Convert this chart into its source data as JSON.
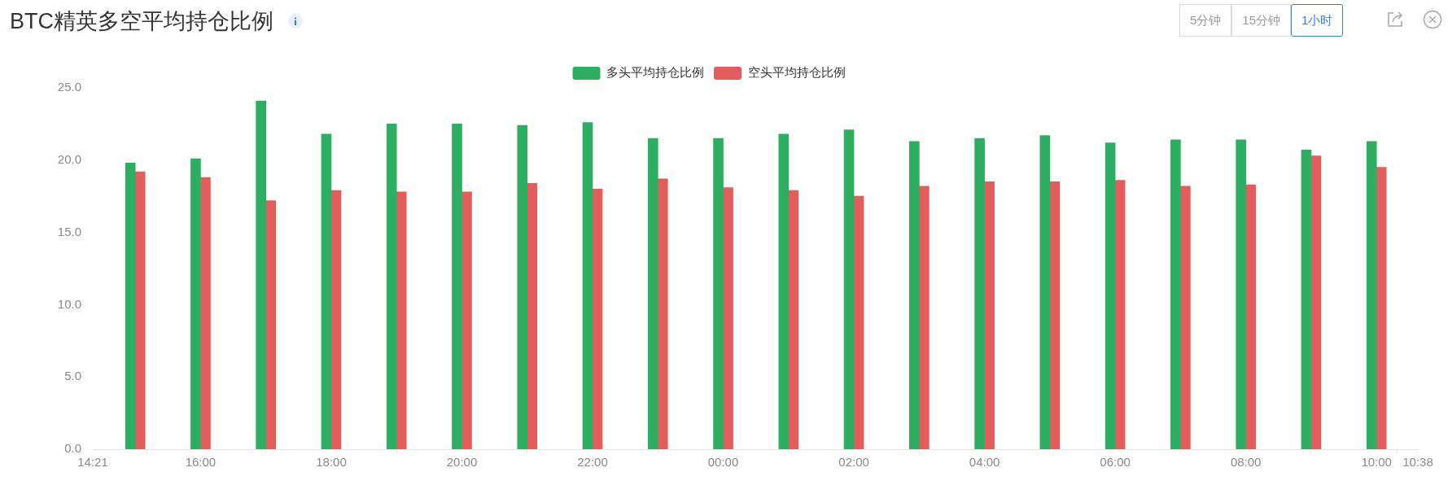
{
  "chart_data": {
    "type": "bar",
    "title": "BTC精英多空平均持仓比例",
    "annotations": [
      "5分钟",
      "15分钟",
      "1小时"
    ],
    "x": [
      "--01-01T15:00",
      "--01-01T16:00",
      "--01-01T17:00",
      "--01-01T18:00",
      "--01-01T19:00",
      "--01-01T20:00",
      "--01-01T21:00",
      "--01-01T22:00",
      "--01-01T23:00",
      "--01-02T00:00",
      "--01-02T01:00",
      "--01-02T02:00",
      "--01-02T03:00",
      "--01-02T04:00",
      "--01-02T05:00",
      "--01-02T06:00",
      "--01-02T07:00",
      "--01-02T08:00",
      "--01-02T09:00",
      "--01-02T10:00"
    ],
    "series": [
      {
        "name": "多头平均持仓比例",
        "color": "#2eae62",
        "values": [
          19.8,
          20.1,
          24.1,
          21.8,
          22.5,
          22.5,
          22.4,
          22.6,
          21.5,
          21.5,
          21.8,
          22.1,
          21.3,
          21.5,
          21.7,
          21.2,
          21.4,
          21.4,
          20.7,
          21.3
        ]
      },
      {
        "name": "空头平均持仓比例",
        "color": "#e35d5d",
        "values": [
          19.2,
          18.8,
          17.2,
          17.9,
          17.8,
          17.8,
          18.4,
          18.0,
          18.7,
          18.1,
          17.9,
          17.5,
          18.2,
          18.5,
          18.5,
          18.6,
          18.2,
          18.3,
          20.3,
          19.5
        ]
      }
    ],
    "xlim": [
      "--01-01T14:21",
      "--01-02T10:38"
    ],
    "xticks": [
      {
        "value": "--01-01T14:21",
        "label": "14:21"
      },
      {
        "value": "--01-01T16:00",
        "label": "16:00"
      },
      {
        "value": "--01-01T18:00",
        "label": "18:00"
      },
      {
        "value": "--01-01T20:00",
        "label": "20:00"
      },
      {
        "value": "--01-01T22:00",
        "label": "22:00"
      },
      {
        "value": "--01-02T00:00",
        "label": "00:00"
      },
      {
        "value": "--01-02T02:00",
        "label": "02:00"
      },
      {
        "value": "--01-02T04:00",
        "label": "04:00"
      },
      {
        "value": "--01-02T06:00",
        "label": "06:00"
      },
      {
        "value": "--01-02T08:00",
        "label": "08:00"
      },
      {
        "value": "--01-02T10:00",
        "label": "10:00"
      },
      {
        "value": "--01-02T10:38",
        "label": "10:38"
      }
    ],
    "ylim": [
      0,
      25
    ],
    "yticks": [
      {
        "value": 0,
        "label": "0.0"
      },
      {
        "value": 5,
        "label": "5.0"
      },
      {
        "value": 10,
        "label": "10.0"
      },
      {
        "value": 15,
        "label": "15.0"
      },
      {
        "value": 20,
        "label": "20.0"
      },
      {
        "value": 25,
        "label": "25.0"
      }
    ],
    "grid": false,
    "legend": "top"
  }
}
